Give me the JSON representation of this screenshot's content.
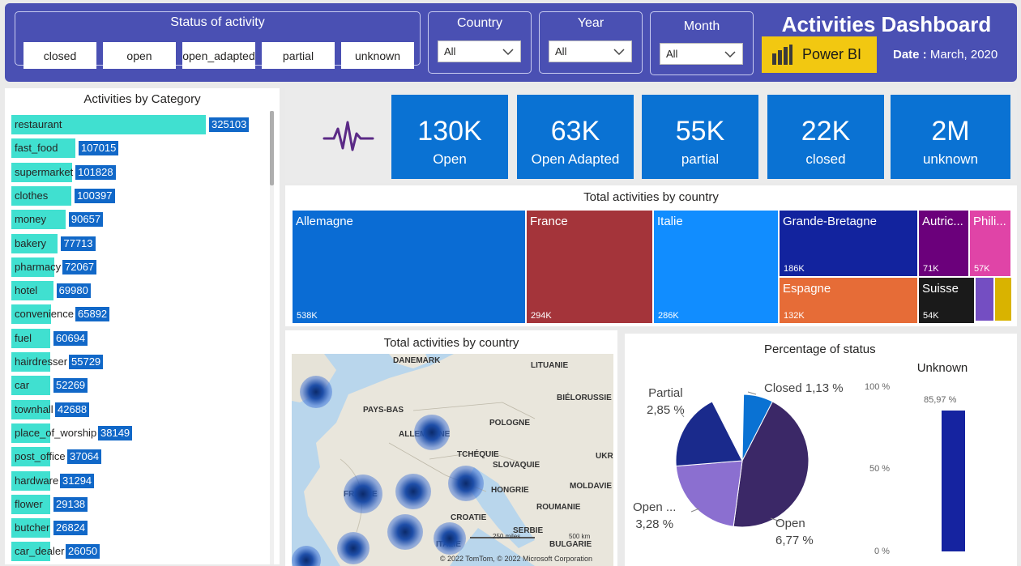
{
  "header": {
    "status_title": "Status of activity",
    "status_options": [
      "closed",
      "open",
      "open_adapted",
      "partial",
      "unknown"
    ],
    "country_title": "Country",
    "country_value": "All",
    "year_title": "Year",
    "year_value": "All",
    "month_title": "Month",
    "month_value": "All",
    "dashboard_title": "Activities Dashboard",
    "powerbi_label": "Power BI",
    "date_label": "Date :",
    "date_value": "March, 2020"
  },
  "colors": {
    "header_bg": "#4a50b3",
    "kpi_bg": "#0a72d3",
    "category_bar": "#40e0d0",
    "category_value_bg": "#1168c8",
    "powerbi_yellow": "#f2c811"
  },
  "category_panel": {
    "title": "Activities by Category",
    "items": [
      {
        "label": "restaurant",
        "value": "325103"
      },
      {
        "label": "fast_food",
        "value": "107015"
      },
      {
        "label": "supermarket",
        "value": "101828"
      },
      {
        "label": "clothes",
        "value": "100397"
      },
      {
        "label": "money",
        "value": "90657"
      },
      {
        "label": "bakery",
        "value": "77713"
      },
      {
        "label": "pharmacy",
        "value": "72067"
      },
      {
        "label": "hotel",
        "value": "69980"
      },
      {
        "label": "convenience",
        "value": "65892"
      },
      {
        "label": "fuel",
        "value": "60694"
      },
      {
        "label": "hairdresser",
        "value": "55729"
      },
      {
        "label": "car",
        "value": "52269"
      },
      {
        "label": "townhall",
        "value": "42688"
      },
      {
        "label": "place_of_worship",
        "value": "38149"
      },
      {
        "label": "post_office",
        "value": "37064"
      },
      {
        "label": "hardware",
        "value": "31294"
      },
      {
        "label": "flower",
        "value": "29138"
      },
      {
        "label": "butcher",
        "value": "26824"
      },
      {
        "label": "car_dealer",
        "value": "26050"
      }
    ]
  },
  "kpis": [
    {
      "value": "130K",
      "label": "Open"
    },
    {
      "value": "63K",
      "label": "Open Adapted"
    },
    {
      "value": "55K",
      "label": "partial"
    },
    {
      "value": "22K",
      "label": "closed"
    },
    {
      "value": "2M",
      "label": "unknown"
    }
  ],
  "treemap": {
    "title": "Total activities by country",
    "tiles": [
      {
        "name": "Allemagne",
        "value": "538K",
        "color": "#0a6cd4"
      },
      {
        "name": "France",
        "value": "294K",
        "color": "#a4343a"
      },
      {
        "name": "Italie",
        "value": "286K",
        "color": "#118dff"
      },
      {
        "name": "Grande-Bretagne",
        "value": "186K",
        "color": "#12239e"
      },
      {
        "name": "Espagne",
        "value": "132K",
        "color": "#e66c37"
      },
      {
        "name": "Autric...",
        "value": "71K",
        "color": "#6b007b"
      },
      {
        "name": "Suisse",
        "value": "54K",
        "color": "#1a1a1a"
      },
      {
        "name": "Phili...",
        "value": "57K",
        "color": "#e044a7"
      },
      {
        "name": "",
        "value": "",
        "color": "#744ec2"
      },
      {
        "name": "",
        "value": "",
        "color": "#d9b300"
      }
    ]
  },
  "map": {
    "title": "Total activities by country",
    "labels": [
      "DANEMARK",
      "LITUANIE",
      "PAYS-BAS",
      "BIÉLORUSSIE",
      "ALLEMAGNE",
      "POLOGNE",
      "TCHÉQUIE",
      "SLOVAQUIE",
      "UKR",
      "FRANCE",
      "HONGRIE",
      "MOLDAVIE",
      "ROUMANIE",
      "CROATIE",
      "SERBIE",
      "ITALIE",
      "BULGARIE"
    ],
    "scale_miles": "250 miles",
    "scale_km": "500 km",
    "copyright": "© 2022 TomTom, © 2022 Microsoft Corporation"
  },
  "pie": {
    "title": "Percentage of status",
    "slices": [
      {
        "name": "Closed",
        "label": "Closed 1,13 %",
        "percent": 7.2,
        "color": "#0a72d3"
      },
      {
        "name": "Open",
        "label_line1": "Open",
        "label_line2": "6,77 %",
        "percent": 44.6,
        "color": "#3b2867"
      },
      {
        "name": "Open ...",
        "label_line1": "Open ...",
        "label_line2": "3,28 %",
        "percent": 21.6,
        "color": "#8b6fd0"
      },
      {
        "name": "Partial",
        "label_line1": "Partial",
        "label_line2": "2,85 %",
        "percent": 18.8,
        "color": "#1a2a8c"
      }
    ]
  },
  "unknown_bar": {
    "title": "Unknown",
    "value_label": "85,97 %",
    "value": 85.97,
    "axis": [
      "100 %",
      "50 %",
      "0 %"
    ],
    "color": "#1523a0"
  }
}
